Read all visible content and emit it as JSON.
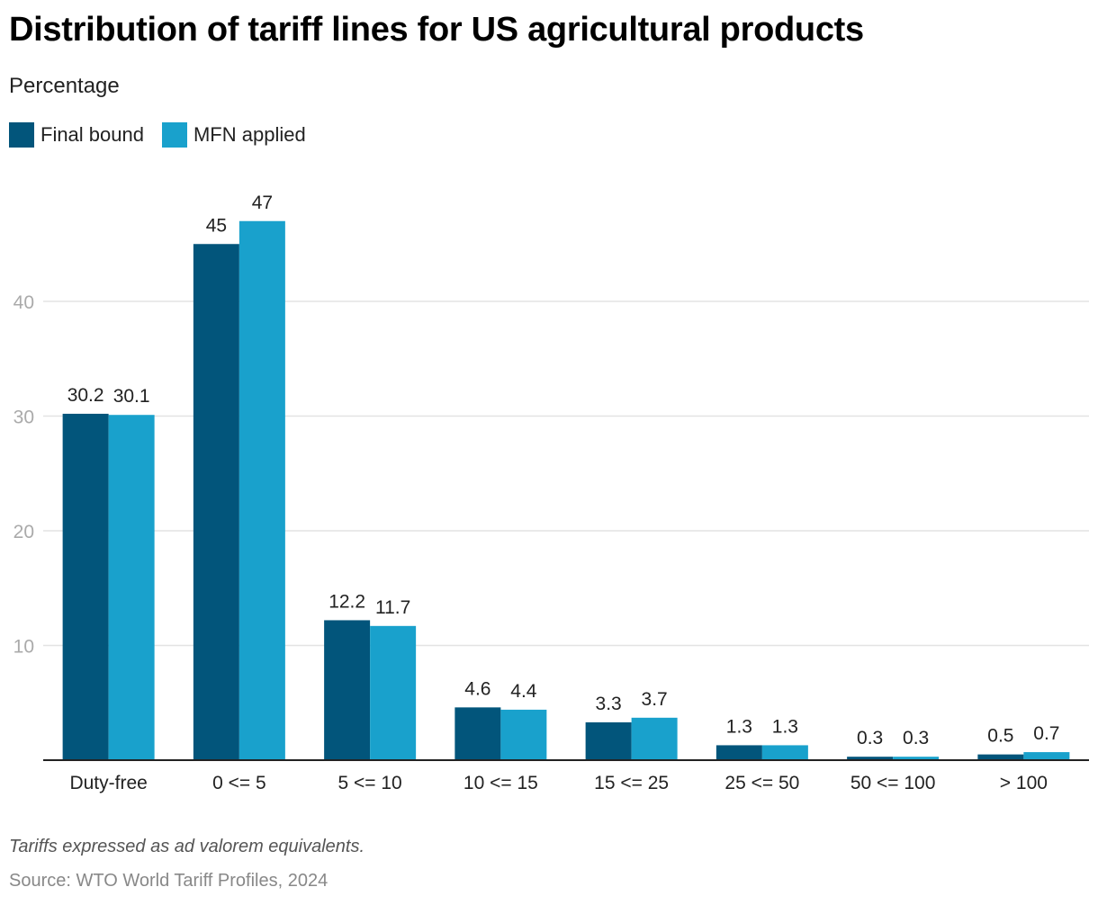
{
  "header": {
    "title": "Distribution of tariff lines for US agricultural products",
    "subtitle": "Percentage"
  },
  "legend": [
    {
      "label": "Final bound",
      "color": "#02557b"
    },
    {
      "label": "MFN applied",
      "color": "#19a1cc"
    }
  ],
  "footer": {
    "note": "Tariffs expressed as ad valorem equivalents.",
    "source": "Source: WTO World Tariff Profiles, 2024"
  },
  "chart_data": {
    "type": "bar",
    "title": "Distribution of tariff lines for US agricultural products",
    "subtitle": "Percentage",
    "xlabel": "",
    "ylabel": "",
    "categories": [
      "Duty-free",
      "0 <= 5",
      "5 <= 10",
      "10 <= 15",
      "15 <= 25",
      "25 <= 50",
      "50 <= 100",
      "> 100"
    ],
    "series": [
      {
        "name": "Final bound",
        "color": "#02557b",
        "values": [
          30.2,
          45,
          12.2,
          4.6,
          3.3,
          1.3,
          0.3,
          0.5
        ]
      },
      {
        "name": "MFN applied",
        "color": "#19a1cc",
        "values": [
          30.1,
          47,
          11.7,
          4.4,
          3.7,
          1.3,
          0.3,
          0.7
        ]
      }
    ],
    "yticks": [
      10,
      20,
      30,
      40
    ],
    "ylim": [
      0,
      47
    ],
    "grid": true,
    "legend_position": "top-left"
  }
}
